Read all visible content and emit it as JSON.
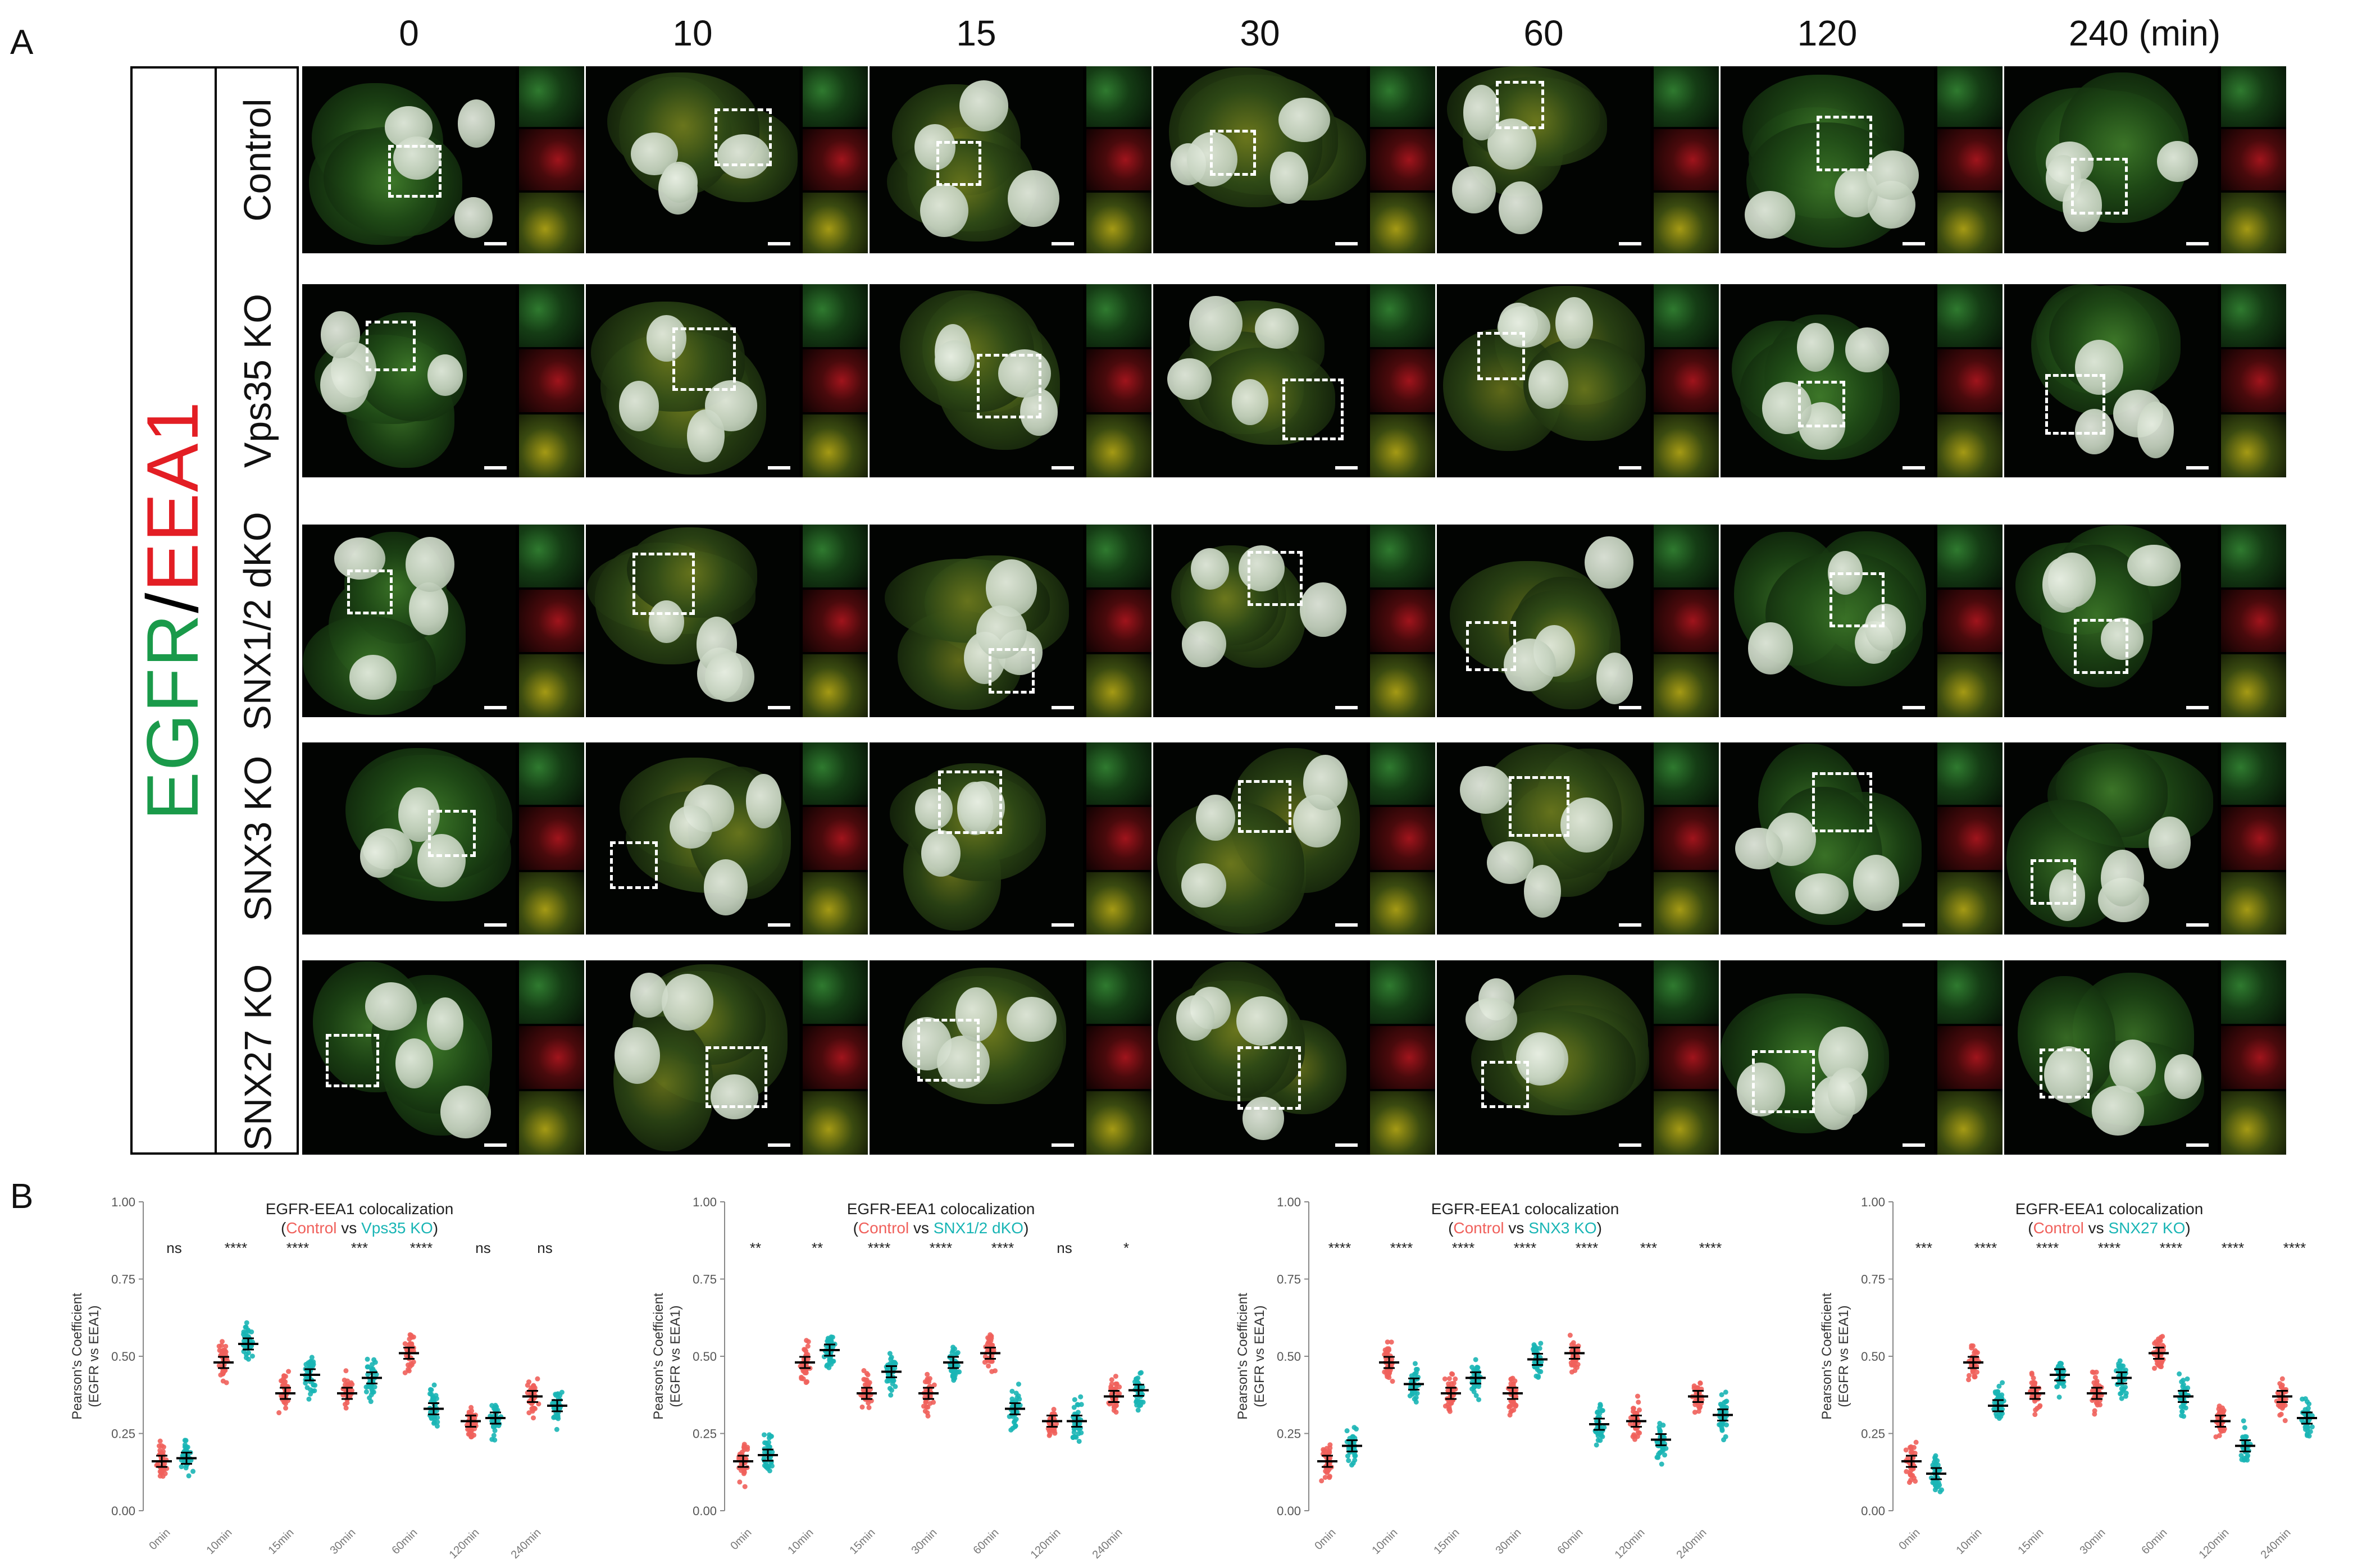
{
  "panel_a": {
    "letter": "A",
    "stain_prefix": "EGFR",
    "stain_sep": "/",
    "stain_suffix": "EEA1",
    "times": [
      "0",
      "10",
      "15",
      "30",
      "60",
      "120",
      "240 (min)"
    ],
    "rows": [
      "Control",
      "Vps35 KO",
      "SNX1/2 dKO",
      "SNX3 KO",
      "SNX27 KO"
    ],
    "colors": {
      "egfr": "#1a9a4a",
      "eea1": "#e31e24"
    }
  },
  "panel_b": {
    "letter": "B",
    "colors": {
      "control": "#f0605b",
      "ko": "#19b5b5"
    }
  },
  "chart_data": [
    {
      "type": "scatter",
      "title": "EGFR-EEA1 colocalization",
      "subtitle_control": "Control",
      "subtitle_vs": "vs",
      "subtitle_ko": "Vps35 KO",
      "ylabel_line1": "Pearson's Coefficient",
      "ylabel_line2": "(EGFR vs EEA1)",
      "ylim": [
        0,
        1
      ],
      "yticks": [
        "0.00",
        "0.25",
        "0.50",
        "0.75",
        "1.00"
      ],
      "categories": [
        "0min",
        "10min",
        "15min",
        "30min",
        "60min",
        "120min",
        "240min"
      ],
      "significance": [
        "ns",
        "****",
        "****",
        "***",
        "****",
        "ns",
        "ns"
      ],
      "series": [
        {
          "name": "Control",
          "values": [
            0.16,
            0.48,
            0.38,
            0.38,
            0.51,
            0.29,
            0.37
          ]
        },
        {
          "name": "Vps35 KO",
          "values": [
            0.17,
            0.54,
            0.44,
            0.43,
            0.33,
            0.3,
            0.34
          ]
        }
      ]
    },
    {
      "type": "scatter",
      "title": "EGFR-EEA1 colocalization",
      "subtitle_control": "Control",
      "subtitle_vs": "vs",
      "subtitle_ko": "SNX1/2 dKO",
      "ylabel_line1": "Pearson's Coefficient",
      "ylabel_line2": "(EGFR vs EEA1)",
      "ylim": [
        0,
        1
      ],
      "yticks": [
        "0.00",
        "0.25",
        "0.50",
        "0.75",
        "1.00"
      ],
      "categories": [
        "0min",
        "10min",
        "15min",
        "30min",
        "60min",
        "120min",
        "240min"
      ],
      "significance": [
        "**",
        "**",
        "****",
        "****",
        "****",
        "ns",
        "*"
      ],
      "series": [
        {
          "name": "Control",
          "values": [
            0.16,
            0.48,
            0.38,
            0.38,
            0.51,
            0.29,
            0.37
          ]
        },
        {
          "name": "SNX1/2 dKO",
          "values": [
            0.18,
            0.52,
            0.45,
            0.48,
            0.33,
            0.29,
            0.39
          ]
        }
      ]
    },
    {
      "type": "scatter",
      "title": "EGFR-EEA1 colocalization",
      "subtitle_control": "Control",
      "subtitle_vs": "vs",
      "subtitle_ko": "SNX3 KO",
      "ylabel_line1": "Pearson's Coefficient",
      "ylabel_line2": "(EGFR vs EEA1)",
      "ylim": [
        0,
        1
      ],
      "yticks": [
        "0.00",
        "0.25",
        "0.50",
        "0.75",
        "1.00"
      ],
      "categories": [
        "0min",
        "10min",
        "15min",
        "30min",
        "60min",
        "120min",
        "240min"
      ],
      "significance": [
        "****",
        "****",
        "****",
        "****",
        "****",
        "***",
        "****"
      ],
      "series": [
        {
          "name": "Control",
          "values": [
            0.16,
            0.48,
            0.38,
            0.38,
            0.51,
            0.29,
            0.37
          ]
        },
        {
          "name": "SNX3 KO",
          "values": [
            0.21,
            0.41,
            0.43,
            0.49,
            0.28,
            0.23,
            0.31
          ]
        }
      ]
    },
    {
      "type": "scatter",
      "title": "EGFR-EEA1 colocalization",
      "subtitle_control": "Control",
      "subtitle_vs": "vs",
      "subtitle_ko": "SNX27 KO",
      "ylabel_line1": "Pearson's Coefficient",
      "ylabel_line2": "(EGFR vs EEA1)",
      "ylim": [
        0,
        1
      ],
      "yticks": [
        "0.00",
        "0.25",
        "0.50",
        "0.75",
        "1.00"
      ],
      "categories": [
        "0min",
        "10min",
        "15min",
        "30min",
        "60min",
        "120min",
        "240min"
      ],
      "significance": [
        "***",
        "****",
        "****",
        "****",
        "****",
        "****",
        "****"
      ],
      "series": [
        {
          "name": "Control",
          "values": [
            0.16,
            0.48,
            0.38,
            0.38,
            0.51,
            0.29,
            0.37
          ]
        },
        {
          "name": "SNX27 KO",
          "values": [
            0.12,
            0.34,
            0.44,
            0.43,
            0.37,
            0.21,
            0.3
          ]
        }
      ]
    }
  ]
}
